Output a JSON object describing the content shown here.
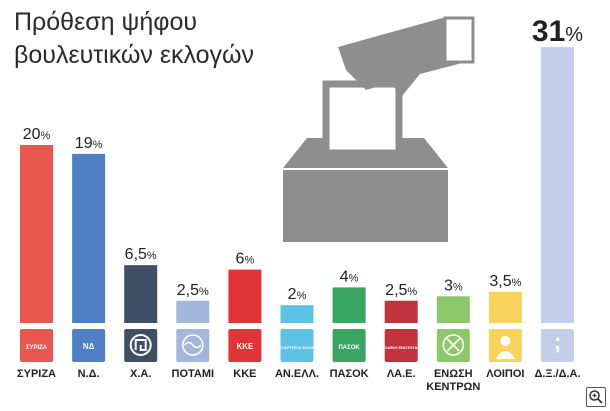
{
  "page": {
    "title_line1": "Πρόθεση ψήφου",
    "title_line2": "βουλευτικών εκλογών"
  },
  "chart_data": {
    "type": "bar",
    "title": "Πρόθεση ψήφου βουλευτικών εκλογών",
    "unit": "%",
    "categories": [
      "ΣΥΡΙΖΑ",
      "Ν.Δ.",
      "Χ.Α.",
      "ΠΟΤΑΜΙ",
      "ΚΚΕ",
      "ΑΝ.ΕΛΛ.",
      "ΠΑΣΟΚ",
      "ΛΑ.Ε.",
      "ΕΝΩΣΗ ΚΕΝΤΡΩΝ",
      "ΛΟΙΠΟΙ",
      "Δ.Ξ./Δ.Α."
    ],
    "values": [
      20,
      19,
      6.5,
      2.5,
      6,
      2,
      4,
      2.5,
      3,
      3.5,
      31
    ],
    "value_labels": [
      "20%",
      "19%",
      "6,5%",
      "2,5%",
      "6%",
      "2%",
      "4%",
      "2,5%",
      "3%",
      "3,5%",
      "31%"
    ],
    "colors": [
      "#e8584f",
      "#4d80c4",
      "#3e4f66",
      "#a3b6dc",
      "#e03437",
      "#5cc3e4",
      "#3aa462",
      "#c2323e",
      "#8cc86a",
      "#f7d35c",
      "#c3cfe8"
    ],
    "icons": [
      "syriza-logo",
      "nd-logo",
      "xa-logo",
      "potami-logo",
      "kke-logo",
      "anel-logo",
      "pasok-logo",
      "lae-logo",
      "enosi-kentroon-logo",
      "person-icon",
      "semicolon-icon"
    ],
    "icon_texts": [
      "ΣΥΡΙΖΑ",
      "ΝΔ",
      "",
      "",
      "ΚΚΕ",
      "ΑΝΕΞΑΡΤΗΤΟΙ ΕΛΛΗΝΕΣ",
      "ΠΑΣΟΚ",
      "ΛΑΪΚΗ ΕΝΟΤΗΤΑ",
      "",
      "",
      ";"
    ],
    "grid": false,
    "legend": "none"
  }
}
